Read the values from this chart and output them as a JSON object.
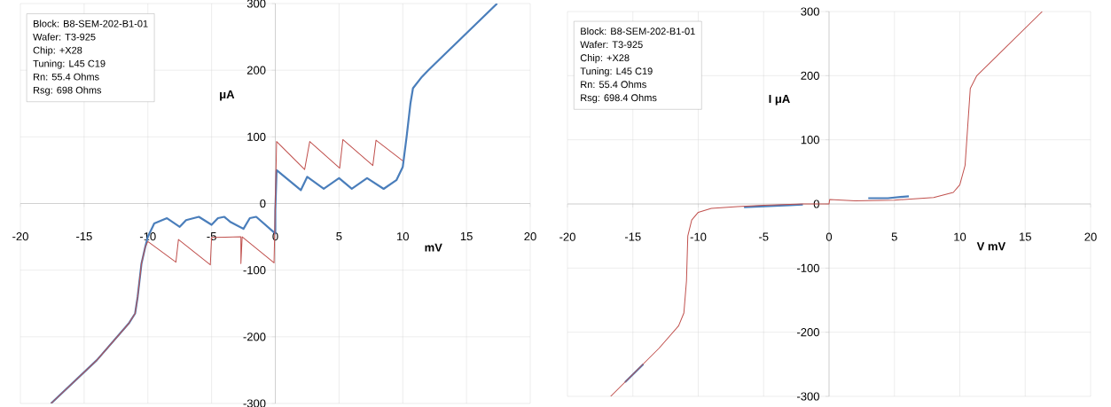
{
  "chart_data": [
    {
      "type": "line",
      "xlabel": "mV",
      "ylabel": "μA",
      "xlim": [
        -20,
        20
      ],
      "ylim": [
        -300,
        300
      ],
      "xticks": [
        -20,
        -15,
        -10,
        -5,
        0,
        5,
        10,
        15,
        20
      ],
      "yticks": [
        -300,
        -200,
        -100,
        0,
        100,
        200,
        300
      ],
      "grid": true,
      "annotations": [
        "Block: B8-SEM-202-B1-01",
        "Wafer: T3-925",
        "Chip: +X28",
        "Tuning: L45 C19",
        "Rn: 55.4 Ohms",
        "Rsg: 698 Ohms"
      ],
      "series": [
        {
          "color": "#4a7ebb",
          "x": [
            -17.6,
            -14,
            -11.5,
            -11,
            -10.8,
            -10.5,
            -10.2,
            -10,
            -9.5,
            -8.5,
            -7.5,
            -7,
            -6,
            -5,
            -4.5,
            -4,
            -3.5,
            -2.5,
            -2,
            -1.5,
            0,
            0,
            0.1,
            2,
            2.5,
            3.8,
            5,
            6,
            7.2,
            8.5,
            9.5,
            10,
            10.3,
            10.6,
            10.8,
            11.5,
            12,
            17.4
          ],
          "values": [
            -300,
            -235,
            -180,
            -165,
            -140,
            -90,
            -65,
            -50,
            -30,
            -22,
            -35,
            -25,
            -20,
            -32,
            -22,
            -20,
            -28,
            -38,
            -22,
            -20,
            -45,
            -10,
            50,
            20,
            40,
            22,
            38,
            22,
            38,
            22,
            35,
            55,
            100,
            150,
            173,
            190,
            200,
            300
          ]
        },
        {
          "color": "#c0504d",
          "x": [
            -17.6,
            -14,
            -11.5,
            -11,
            -10.8,
            -10.5,
            -10.2,
            -10,
            -7.8,
            -7.6,
            -5.1,
            -5,
            -2.7,
            -2.7,
            -2.6,
            -0.1,
            0,
            0.1,
            2.3,
            2.7,
            5.05,
            5.3,
            7.65,
            7.9,
            10
          ],
          "values": [
            -300,
            -235,
            -180,
            -165,
            -140,
            -90,
            -65,
            -57,
            -88,
            -54,
            -92,
            -51,
            -50,
            -90,
            -50,
            -89,
            0,
            93,
            51,
            93,
            53,
            96,
            57,
            95,
            64
          ]
        }
      ]
    },
    {
      "type": "line",
      "xlabel": "V  mV",
      "ylabel": "I  μA",
      "xlim": [
        -20,
        20
      ],
      "ylim": [
        -300,
        300
      ],
      "xticks": [
        -20,
        -15,
        -10,
        -5,
        0,
        5,
        10,
        15,
        20
      ],
      "yticks": [
        -300,
        -200,
        -100,
        0,
        100,
        200,
        300
      ],
      "grid": true,
      "annotations": [
        "Block: B8-SEM-202-B1-01",
        "Wafer: T3-925",
        "Chip: +X28",
        "Tuning: L45 C19",
        "Rn: 55.4 Ohms",
        "Rsg: 698.4 Ohms"
      ],
      "series": [
        {
          "color": "#4a7ebb",
          "x": [
            -15.6,
            -14.2,
            null,
            -6.5,
            -3,
            -2,
            null,
            3,
            4.5,
            6.1
          ],
          "values": [
            -278,
            -250,
            null,
            -5,
            -2,
            -1,
            null,
            9,
            9,
            12
          ]
        },
        {
          "color": "#c0504d",
          "x": [
            -16.7,
            -13,
            -11.5,
            -11.1,
            -10.9,
            -10.8,
            -10.5,
            -10,
            -9,
            -7,
            -5,
            -2,
            0,
            0.05,
            2,
            5,
            8,
            9.5,
            10,
            10.4,
            10.6,
            10.8,
            11.3,
            16.3
          ],
          "values": [
            -300,
            -225,
            -190,
            -170,
            -120,
            -50,
            -25,
            -13,
            -7,
            -4,
            -2,
            0,
            0,
            7,
            5,
            6,
            10,
            18,
            30,
            60,
            120,
            180,
            200,
            300
          ]
        }
      ]
    }
  ]
}
